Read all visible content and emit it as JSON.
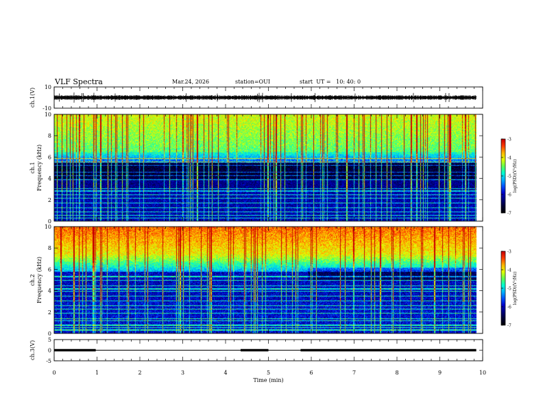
{
  "header": {
    "title": "VLF Spectra",
    "date": "Mar.24, 2026",
    "station": "station=OUI",
    "start_ut": "start  UT =   10: 40: 0"
  },
  "chart_data": [
    {
      "type": "line",
      "panel": "ch.1 waveform",
      "ylabel": "ch.1(V)",
      "ylim": [
        -10,
        10
      ],
      "yticks": [
        "10",
        "-10"
      ],
      "xlim": [
        0,
        10
      ],
      "baseline": 0,
      "color": "#000000"
    },
    {
      "type": "heatmap",
      "panel": "ch.1 spectrogram",
      "ylabel": "ch.1\nFrequency  (kHz)",
      "ylim": [
        0,
        10
      ],
      "yticks": [
        "0",
        "2",
        "4",
        "6",
        "8",
        "10"
      ],
      "xlim": [
        0,
        10
      ],
      "data_end_min": 9.85,
      "quiet_band_khz": [
        4.0,
        5.5
      ],
      "colorbar": {
        "label": "log(PSD)(V²/Hz)",
        "range": [
          -7,
          -3
        ],
        "ticks": [
          "-3",
          "-4",
          "-5",
          "-6",
          "-7"
        ]
      }
    },
    {
      "type": "heatmap",
      "panel": "ch.2 spectrogram",
      "ylabel": "ch.2\nFrequency  (kHz)",
      "ylim": [
        0,
        10
      ],
      "yticks": [
        "0",
        "2",
        "4",
        "6",
        "8",
        "10"
      ],
      "xlim": [
        0,
        10
      ],
      "data_end_min": 9.85,
      "colorbar": {
        "label": "log(PSD)(V²/Hz)",
        "range": [
          -7,
          -3
        ],
        "ticks": [
          "-3",
          "-4",
          "-5",
          "-6",
          "-7"
        ]
      }
    },
    {
      "type": "line",
      "panel": "ch.3 status",
      "ylabel": "ch.3(V)",
      "ylim": [
        -5,
        5
      ],
      "yticks": [
        "5",
        "0",
        "-5"
      ],
      "xlim": [
        0,
        10
      ],
      "xticks": [
        "0",
        "1",
        "2",
        "3",
        "4",
        "5",
        "6",
        "7",
        "8",
        "9",
        "10"
      ],
      "xlabel": "Time  (min)",
      "level_v": 0,
      "thick_segments_min": [
        [
          0,
          0.97
        ],
        [
          4.35,
          5.0
        ],
        [
          5.75,
          9.85
        ]
      ]
    }
  ],
  "colors": {
    "colormap": [
      "#000000",
      "#000030",
      "#00007a",
      "#0000c8",
      "#0050ff",
      "#00b4ff",
      "#00ffd2",
      "#64ff50",
      "#e6ff00",
      "#ffb400",
      "#ff3c00",
      "#c80000"
    ]
  }
}
